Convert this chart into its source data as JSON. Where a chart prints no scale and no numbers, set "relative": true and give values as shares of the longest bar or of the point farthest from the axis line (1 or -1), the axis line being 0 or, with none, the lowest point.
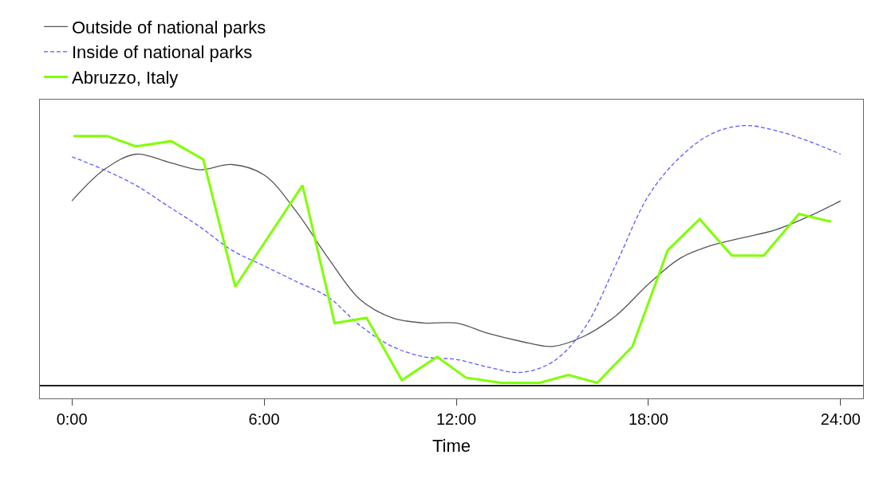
{
  "chart_data": {
    "type": "line",
    "relative": true,
    "xlabel": "Time",
    "xlim": [
      -1,
      24.7
    ],
    "xticks": [
      {
        "value": 0,
        "label": "0:00"
      },
      {
        "value": 6,
        "label": "6:00"
      },
      {
        "value": 12,
        "label": "12:00"
      },
      {
        "value": 18,
        "label": "18:00"
      },
      {
        "value": 24,
        "label": "24:00"
      }
    ],
    "legend": "top left",
    "marker": "none",
    "series": [
      {
        "name": "Outside of national parks",
        "color": "#555555",
        "line_style": "solid",
        "x": [
          0,
          1,
          2,
          3,
          4,
          5,
          6,
          7,
          8,
          9,
          10,
          11,
          12,
          13,
          14,
          15,
          16,
          17,
          18,
          19,
          20,
          21,
          22,
          23,
          24
        ],
        "values": [
          0.71,
          0.83,
          0.89,
          0.86,
          0.83,
          0.85,
          0.81,
          0.67,
          0.49,
          0.33,
          0.26,
          0.24,
          0.24,
          0.2,
          0.17,
          0.15,
          0.19,
          0.27,
          0.39,
          0.49,
          0.54,
          0.57,
          0.6,
          0.65,
          0.71
        ]
      },
      {
        "name": "Inside of national parks",
        "color": "#5a5aff",
        "line_style": "dashed",
        "x": [
          0,
          1,
          2,
          3,
          4,
          5,
          6,
          7,
          8,
          9,
          10,
          11,
          12,
          13,
          14,
          15,
          16,
          17,
          18,
          19,
          20,
          21,
          22,
          23,
          24
        ],
        "values": [
          0.88,
          0.83,
          0.77,
          0.69,
          0.61,
          0.52,
          0.46,
          0.4,
          0.34,
          0.23,
          0.15,
          0.11,
          0.1,
          0.07,
          0.05,
          0.09,
          0.22,
          0.47,
          0.73,
          0.88,
          0.97,
          1.0,
          0.98,
          0.94,
          0.89
        ]
      },
      {
        "name": "Abruzzo, Italy",
        "color": "#7fff00",
        "line_style": "solid",
        "x": [
          0.05,
          1.1,
          2.0,
          3.1,
          4.1,
          5.1,
          7.2,
          8.2,
          9.2,
          10.3,
          11.4,
          12.3,
          13.4,
          14.6,
          15.5,
          16.4,
          17.5,
          18.6,
          19.6,
          20.6,
          21.6,
          22.7,
          23.7
        ],
        "values": [
          0.96,
          0.96,
          0.92,
          0.94,
          0.87,
          0.38,
          0.77,
          0.24,
          0.26,
          0.02,
          0.11,
          0.03,
          0.01,
          0.01,
          0.04,
          0.01,
          0.15,
          0.52,
          0.64,
          0.5,
          0.5,
          0.66,
          0.63
        ]
      }
    ]
  }
}
